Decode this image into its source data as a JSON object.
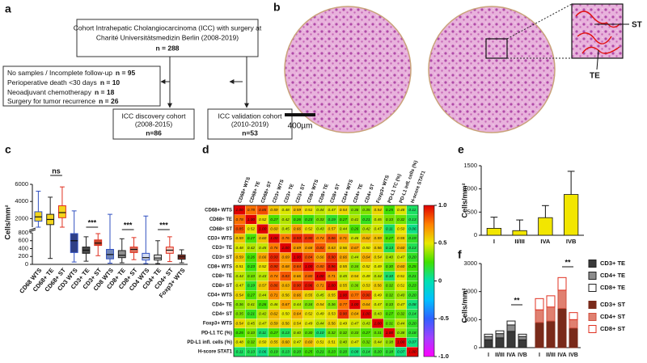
{
  "panel_labels": [
    "a",
    "b",
    "c",
    "d",
    "e",
    "f"
  ],
  "flowchart": {
    "cohort": {
      "lines": [
        "Cohort Intrahepatic Cholangiocarcinoma (ICC) with surgery at",
        "Charité Universitätsmedizin Berlin (2008-2019)"
      ],
      "n": "n = 288"
    },
    "exclusions": [
      {
        "text": "No samples / Incomplete follow-up",
        "n": "n = 95"
      },
      {
        "text": "Perioperative death <30 days",
        "n": "n = 10"
      },
      {
        "text": "Neoadjuvant chemotherapy",
        "n": "n = 18"
      },
      {
        "text": "Surgery for tumor recurrence",
        "n": "n = 26"
      }
    ],
    "discovery": {
      "lines": [
        "ICC discovery cohort",
        "(2008-2015)"
      ],
      "n": "n=86"
    },
    "validation": {
      "lines": [
        "ICC validation cohort",
        "(2010-2019)"
      ],
      "n": "n=53"
    }
  },
  "micrograph": {
    "labels": [
      "ST",
      "TE"
    ],
    "scale_bar": "400µm"
  },
  "chart_data": [
    {
      "type": "box",
      "ylabel": "Cells/mm²",
      "categories": [
        "CD68 WTS",
        "CD68+ TE",
        "CD68+ ST",
        "CD3 WTS",
        "CD3+ TE",
        "CD3+ ST",
        "CD8 WTS",
        "CD8+ TE",
        "CD8+ ST",
        "CD4 WTS",
        "CD4+ TE",
        "CD4+ ST",
        "Foxp3+ WTS"
      ],
      "min": [
        1000,
        150,
        1000,
        60,
        80,
        220,
        30,
        40,
        120,
        20,
        20,
        70,
        40
      ],
      "q1": [
        1700,
        1300,
        2100,
        300,
        280,
        480,
        140,
        170,
        300,
        110,
        110,
        280,
        130
      ],
      "median": [
        2200,
        1900,
        2700,
        600,
        360,
        540,
        250,
        230,
        380,
        170,
        160,
        360,
        190
      ],
      "q3": [
        2800,
        2500,
        3500,
        780,
        440,
        620,
        380,
        350,
        440,
        280,
        240,
        440,
        240
      ],
      "max": [
        5200,
        4500,
        5700,
        2900,
        700,
        780,
        2500,
        650,
        680,
        2300,
        600,
        700,
        370
      ],
      "colors": [
        "#f3d51c",
        "#f3d51c",
        "#f3d51c",
        "#2f3f86",
        "#4a4a4a",
        "#c8462c",
        "#7286b8",
        "#8e8e8e",
        "#d9715e",
        "#d4ddf2",
        "#d8d8d8",
        "#f6c9bf",
        "#8c2f22"
      ],
      "edge_colors": [
        "#3050c0",
        "#222222",
        "#e03020",
        "#3050c0",
        "#222222",
        "#e03020",
        "#3050c0",
        "#222222",
        "#e03020",
        "#3050c0",
        "#222222",
        "#e03020",
        "#222222"
      ],
      "ylim": [
        0,
        6000
      ],
      "ybreak": [
        800,
        1000
      ],
      "yticks": [
        0,
        200,
        400,
        600,
        800,
        2000,
        4000,
        6000
      ],
      "annotations": [
        "ns",
        "***",
        "***",
        "***"
      ]
    },
    {
      "type": "heatmap",
      "categories": [
        "CD68+ WTS",
        "CD68+ TE",
        "CD68+ ST",
        "CD3+ WTS",
        "CD3+ TE",
        "CD3+ ST",
        "CD8+ WTS",
        "CD8+ TE",
        "CD8+ ST",
        "CD4+ WTS",
        "CD4+ TE",
        "CD4+ ST",
        "Foxp3+ WTS",
        "PD-L1 TC (%)",
        "PD-L1 infl. cells (%)",
        "H-score STAT1"
      ],
      "values": [
        [
          1,
          0.78,
          0.85,
          0.59,
          0.48,
          0.59,
          0.51,
          0.44,
          0.47,
          0.54,
          0.36,
          0.35,
          0.54,
          0.25,
          0.48,
          0.11
        ],
        [
          0.78,
          1,
          0.52,
          0.27,
          0.42,
          0.26,
          0.23,
          0.33,
          0.19,
          0.27,
          0.41,
          0.21,
          0.45,
          0.33,
          0.32,
          0.13
        ],
        [
          0.85,
          0.52,
          1,
          0.6,
          0.45,
          0.66,
          0.52,
          0.43,
          0.57,
          0.44,
          0.26,
          0.42,
          0.47,
          0.11,
          0.5,
          0.06
        ],
        [
          0.59,
          0.27,
          0.6,
          1,
          0.76,
          0.93,
          0.9,
          0.74,
          0.86,
          0.71,
          0.46,
          0.62,
          0.59,
          0.27,
          0.55,
          0.19
        ],
        [
          0.48,
          0.42,
          0.45,
          0.76,
          1,
          0.69,
          0.68,
          0.83,
          0.63,
          0.56,
          0.67,
          0.5,
          0.56,
          0.13,
          0.6,
          0.13
        ],
        [
          0.59,
          0.26,
          0.66,
          0.93,
          0.69,
          1,
          0.84,
          0.66,
          0.9,
          0.66,
          0.44,
          0.64,
          0.54,
          0.4,
          0.47,
          0.2
        ],
        [
          0.51,
          0.23,
          0.52,
          0.9,
          0.68,
          0.84,
          1,
          0.8,
          0.96,
          0.55,
          0.34,
          0.52,
          0.49,
          0.3,
          0.6,
          0.25
        ],
        [
          0.44,
          0.33,
          0.43,
          0.74,
          0.83,
          0.66,
          0.8,
          1,
          0.71,
          0.45,
          0.54,
          0.49,
          0.44,
          0.1,
          0.51,
          0.21
        ],
        [
          0.47,
          0.19,
          0.57,
          0.86,
          0.63,
          0.9,
          0.96,
          0.71,
          1,
          0.55,
          0.36,
          0.53,
          0.56,
          0.32,
          0.51,
          0.23
        ],
        [
          0.54,
          0.27,
          0.44,
          0.71,
          0.56,
          0.66,
          0.55,
          0.45,
          0.55,
          1,
          0.77,
          0.9,
          0.49,
          0.32,
          0.4,
          0.2
        ],
        [
          0.36,
          0.41,
          0.26,
          0.46,
          0.67,
          0.44,
          0.34,
          0.54,
          0.36,
          0.77,
          1,
          0.64,
          0.47,
          0.33,
          0.47,
          0.08
        ],
        [
          0.35,
          0.21,
          0.42,
          0.62,
          0.5,
          0.64,
          0.52,
          0.49,
          0.53,
          0.9,
          0.64,
          1,
          0.43,
          0.27,
          0.32,
          0.14
        ],
        [
          0.54,
          0.45,
          0.47,
          0.59,
          0.56,
          0.54,
          0.49,
          0.44,
          0.56,
          0.49,
          0.47,
          0.43,
          1,
          0.31,
          0.44,
          0.2
        ],
        [
          0.25,
          0.33,
          0.11,
          0.27,
          0.13,
          0.4,
          0.3,
          0.1,
          0.32,
          0.32,
          0.33,
          0.27,
          0.31,
          1,
          0.38,
          0.18
        ],
        [
          0.48,
          0.32,
          0.5,
          0.55,
          0.6,
          0.47,
          0.6,
          0.51,
          0.51,
          0.4,
          0.47,
          0.32,
          0.44,
          0.38,
          1,
          0.07
        ],
        [
          0.11,
          0.13,
          0.06,
          0.19,
          0.13,
          0.2,
          0.25,
          0.21,
          0.23,
          0.2,
          0.08,
          0.14,
          0.2,
          0.18,
          0.07,
          1
        ]
      ],
      "value_labels": [
        [
          "1.00",
          "0.78",
          "0.85",
          "0.59",
          "0.48",
          "0.59",
          "0.51",
          "0.44",
          "0.47",
          "0.54",
          "0.36",
          "0.35",
          "0.54",
          "0.25",
          "0.48",
          "0.11"
        ],
        [
          "0.78",
          "1.00",
          "0.52",
          "0.27",
          "0.42",
          "0.26",
          "0.23",
          "0.33",
          "0.19",
          "0.27",
          "0.41",
          "0.21",
          "0.45",
          "0.33",
          "0.32",
          "0.13"
        ],
        [
          "0.85",
          "0.52",
          "1.00",
          "0.60",
          "0.45",
          "0.66",
          "0.52",
          "0.43",
          "0.57",
          "0.44",
          "0.26",
          "0.42",
          "0.47",
          "0.11",
          "0.50",
          "0.06"
        ],
        [
          "0.59",
          "0.27",
          "0.60",
          "1.00",
          "0.76",
          "0.93",
          "0.90",
          "0.74",
          "0.86",
          "0.71",
          "0.46",
          "0.62",
          "0.59",
          "0.27",
          "0.55",
          "0.19"
        ],
        [
          "0.48",
          "0.42",
          "0.45",
          "0.76",
          "1.00",
          "0.69",
          "0.68",
          "0.83",
          "0.63",
          "0.56",
          "0.67",
          "0.50",
          "0.56",
          "0.13",
          "0.60",
          "0.13"
        ],
        [
          "0.59",
          "0.26",
          "0.66",
          "0.93",
          "0.69",
          "1.00",
          "0.84",
          "0.66",
          "0.90",
          "0.66",
          "0.44",
          "0.64",
          "0.54",
          "0.40",
          "0.47",
          "0.20"
        ],
        [
          "0.51",
          "0.23",
          "0.52",
          "0.90",
          "0.68",
          "0.84",
          "1.00",
          "0.80",
          "0.96",
          "0.55",
          "0.34",
          "0.52",
          "0.49",
          "0.30",
          "0.60",
          "0.25"
        ],
        [
          "0.44",
          "0.33",
          "0.43",
          "0.74",
          "0.83",
          "0.66",
          "0.80",
          "1.00",
          "0.71",
          "0.45",
          "0.54",
          "0.49",
          "0.44",
          "0.10",
          "0.51",
          "0.21"
        ],
        [
          "0.47",
          "0.19",
          "0.57",
          "0.86",
          "0.63",
          "0.90",
          "0.96",
          "0.71",
          "1.00",
          "0.55",
          "0.36",
          "0.53",
          "0.56",
          "0.32",
          "0.51",
          "0.23"
        ],
        [
          "0.54",
          "0.27",
          "0.44",
          "0.71",
          "0.56",
          "0.66",
          "0.55",
          "0.45",
          "0.55",
          "1.00",
          "0.77",
          "0.90",
          "0.49",
          "0.32",
          "0.40",
          "0.20"
        ],
        [
          "0.36",
          "0.41",
          "0.26",
          "0.46",
          "0.67",
          "0.44",
          "0.34",
          "0.54",
          "0.36",
          "0.77",
          "1.00",
          "0.64",
          "0.47",
          "0.33",
          "0.47",
          "0.08"
        ],
        [
          "0.35",
          "0.21",
          "0.42",
          "0.62",
          "0.50",
          "0.64",
          "0.52",
          "0.49",
          "0.53",
          "0.90",
          "0.64",
          "1.00",
          "0.43",
          "0.27",
          "0.32",
          "0.14"
        ],
        [
          "0.54",
          "0.45",
          "0.47",
          "0.59",
          "0.56",
          "0.54",
          "0.49",
          "0.44",
          "0.56",
          "0.49",
          "0.47",
          "0.43",
          "1.00",
          "0.31",
          "0.44",
          "0.20"
        ],
        [
          "0.25",
          "0.33",
          "0.11",
          "0.27",
          "0.13",
          "0.40",
          "0.30",
          "0.10",
          "0.32",
          "0.32",
          "0.33",
          "0.27",
          "0.31",
          "1.00",
          "0.38",
          "0.18"
        ],
        [
          "0.48",
          "0.32",
          "0.50",
          "0.55",
          "0.60",
          "0.47",
          "0.60",
          "0.51",
          "0.51",
          "0.40",
          "0.47",
          "0.32",
          "0.44",
          "0.38",
          "1.00",
          "0.07"
        ],
        [
          "0.11",
          "0.13",
          "0.06",
          "0.19",
          "0.13",
          "0.20",
          "0.25",
          "0.21",
          "0.23",
          "0.20",
          "0.08",
          "0.14",
          "0.20",
          "0.18",
          "0.07",
          "1.00"
        ]
      ],
      "zlim": [
        -1,
        1
      ],
      "zticks": [
        {
          "value": 1,
          "label": "1.0"
        },
        0.5,
        0,
        -0.5,
        {
          "value": -1,
          "label": "-1.0"
        }
      ],
      "colorscale": [
        "#ff00ff",
        "#a040ff",
        "#3060ff",
        "#00c0ff",
        "#00e0b0",
        "#40e000",
        "#e8e800",
        "#ff8000",
        "#e00000"
      ]
    },
    {
      "type": "bar",
      "ylabel": "Cells/mm²",
      "categories": [
        "I",
        "II/III",
        "IVA",
        "IVB"
      ],
      "values": [
        150,
        100,
        380,
        880
      ],
      "errors": [
        240,
        230,
        260,
        500
      ],
      "color": "#f2e600",
      "ylim": [
        0,
        1500
      ],
      "yticks": [
        0,
        500,
        1000,
        1500
      ]
    },
    {
      "type": "stacked_bar",
      "ylabel": "Cells/mm²",
      "categories": [
        "I",
        "II/III",
        "IVA",
        "IVB",
        "I",
        "II/III",
        "IVA",
        "IVB"
      ],
      "series": [
        {
          "name": "CD3+ TE",
          "color": "#3a3a3a",
          "edge_color": "#222222",
          "values": [
            280,
            350,
            580,
            280,
            null,
            null,
            null,
            null
          ]
        },
        {
          "name": "CD4+ TE",
          "color": "#8c8c8c",
          "edge_color": "#222222",
          "values": [
            120,
            150,
            230,
            120,
            null,
            null,
            null,
            null
          ]
        },
        {
          "name": "CD8+ TE",
          "color": "#ffffff",
          "edge_color": "#222222",
          "values": [
            80,
            100,
            140,
            80,
            null,
            null,
            null,
            null
          ]
        },
        {
          "name": "CD3+ ST",
          "color": "#7a2a1a",
          "edge_color": "#7a2a1a",
          "values": [
            null,
            null,
            null,
            null,
            900,
            950,
            1400,
            700
          ]
        },
        {
          "name": "CD4+ ST",
          "color": "#e08070",
          "edge_color": "#d05040",
          "values": [
            null,
            null,
            null,
            null,
            450,
            500,
            650,
            300
          ]
        },
        {
          "name": "CD8+ ST",
          "color": "#ffffff",
          "edge_color": "#e03020",
          "values": [
            null,
            null,
            null,
            null,
            400,
            400,
            450,
            250
          ]
        }
      ],
      "ylim": [
        0,
        3000
      ],
      "yticks": [
        0,
        1000,
        2000,
        3000
      ],
      "annotations": [
        "**",
        "**"
      ]
    }
  ]
}
